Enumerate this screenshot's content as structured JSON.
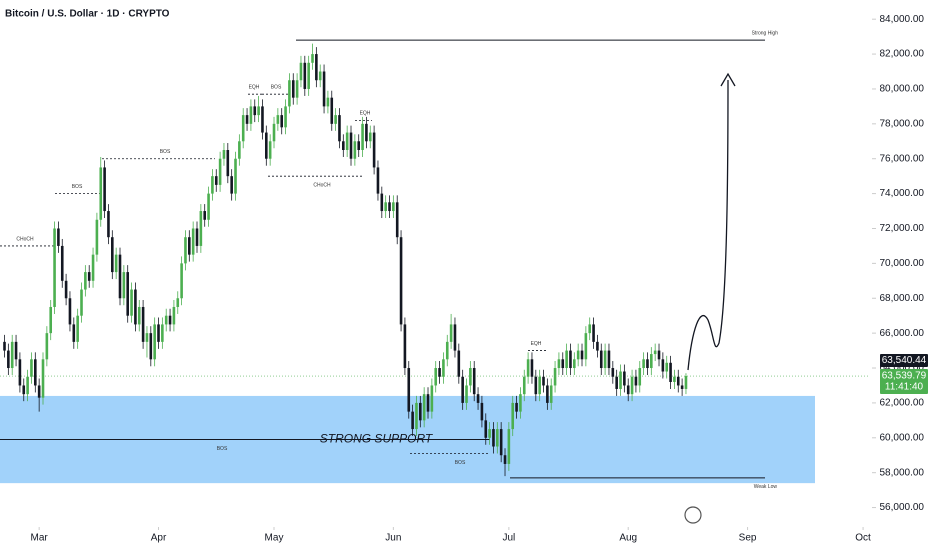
{
  "chart_data": {
    "type": "candlestick",
    "title": "Bitcoin / U.S. Dollar · 1D · CRYPTO",
    "up_color": "#4caf50",
    "down_color": "#131722",
    "xlim": [
      -1.17,
      224.8
    ],
    "xticks": [
      {
        "value": 9,
        "label": "Mar"
      },
      {
        "value": 40,
        "label": "Apr"
      },
      {
        "value": 70,
        "label": "May"
      },
      {
        "value": 101,
        "label": "Jun"
      },
      {
        "value": 131,
        "label": "Jul"
      },
      {
        "value": 162,
        "label": "Aug"
      },
      {
        "value": 193,
        "label": "Sep"
      },
      {
        "value": 223,
        "label": "Oct"
      }
    ],
    "ylim": [
      55000,
      85100
    ],
    "yticks": [
      {
        "value": 56000,
        "label": "56,000.00"
      },
      {
        "value": 58000,
        "label": "58,000.00"
      },
      {
        "value": 60000,
        "label": "60,000.00"
      },
      {
        "value": 62000,
        "label": "62,000.00"
      },
      {
        "value": 64000,
        "label": "64,000.00"
      },
      {
        "value": 66000,
        "label": "66,000.00"
      },
      {
        "value": 68000,
        "label": "68,000.00"
      },
      {
        "value": 70000,
        "label": "70,000.00"
      },
      {
        "value": 72000,
        "label": "72,000.00"
      },
      {
        "value": 74000,
        "label": "74,000.00"
      },
      {
        "value": 76000,
        "label": "76,000.00"
      },
      {
        "value": 78000,
        "label": "78,000.00"
      },
      {
        "value": 80000,
        "label": "80,000.00"
      },
      {
        "value": 82000,
        "label": "82,000.00"
      },
      {
        "value": 84000,
        "label": "84,000.00"
      }
    ],
    "candles": [
      [
        65500,
        65900,
        64600,
        65000
      ],
      [
        65000,
        65400,
        63600,
        64000
      ],
      [
        64000,
        65900,
        63600,
        65500
      ],
      [
        65500,
        65900,
        64100,
        64500
      ],
      [
        64500,
        64900,
        62600,
        63000
      ],
      [
        63000,
        63400,
        62100,
        62500
      ],
      [
        62500,
        63900,
        62100,
        63500
      ],
      [
        63500,
        64900,
        63100,
        64500
      ],
      [
        64500,
        64900,
        62600,
        63000
      ],
      [
        63000,
        63400,
        61500,
        62300
      ],
      [
        62300,
        64900,
        61900,
        64500
      ],
      [
        64500,
        66400,
        64100,
        66000
      ],
      [
        66000,
        67900,
        65600,
        67500
      ],
      [
        67500,
        72400,
        67100,
        72000
      ],
      [
        72000,
        72400,
        70600,
        71000
      ],
      [
        71000,
        71400,
        68600,
        69000
      ],
      [
        69000,
        69400,
        67600,
        68000
      ],
      [
        68000,
        68400,
        66100,
        66500
      ],
      [
        66500,
        66900,
        65100,
        65500
      ],
      [
        65500,
        67400,
        65100,
        67000
      ],
      [
        67000,
        68900,
        66600,
        68500
      ],
      [
        68500,
        69900,
        68100,
        69500
      ],
      [
        69500,
        69900,
        68600,
        69000
      ],
      [
        69000,
        70900,
        68600,
        70500
      ],
      [
        70500,
        72900,
        70100,
        72500
      ],
      [
        72500,
        76100,
        72100,
        75500
      ],
      [
        75500,
        75900,
        72600,
        73000
      ],
      [
        73000,
        73400,
        71100,
        71500
      ],
      [
        71500,
        71900,
        69100,
        69500
      ],
      [
        69500,
        70900,
        69100,
        70500
      ],
      [
        70500,
        70900,
        67600,
        68000
      ],
      [
        68000,
        69900,
        67600,
        69500
      ],
      [
        69500,
        69900,
        66600,
        67000
      ],
      [
        67000,
        68900,
        66600,
        68500
      ],
      [
        68500,
        68900,
        66100,
        66500
      ],
      [
        66500,
        67900,
        66100,
        67500
      ],
      [
        67500,
        67900,
        65100,
        65500
      ],
      [
        65500,
        66400,
        64600,
        66000
      ],
      [
        66000,
        66400,
        64100,
        64500
      ],
      [
        64500,
        66900,
        64100,
        66500
      ],
      [
        66500,
        66900,
        65100,
        65500
      ],
      [
        65500,
        66900,
        65100,
        66500
      ],
      [
        66500,
        67400,
        66100,
        67000
      ],
      [
        67000,
        67400,
        66100,
        66500
      ],
      [
        66500,
        67900,
        66100,
        67500
      ],
      [
        67500,
        68400,
        67100,
        68000
      ],
      [
        68000,
        70400,
        67600,
        70000
      ],
      [
        70000,
        71900,
        69600,
        71500
      ],
      [
        71500,
        71900,
        70100,
        70500
      ],
      [
        70500,
        72400,
        70100,
        72000
      ],
      [
        72000,
        72400,
        70600,
        71000
      ],
      [
        71000,
        73400,
        70600,
        73000
      ],
      [
        73000,
        73400,
        72100,
        72500
      ],
      [
        72500,
        74400,
        72100,
        74000
      ],
      [
        74000,
        75400,
        73600,
        75000
      ],
      [
        75000,
        75400,
        74100,
        74500
      ],
      [
        74500,
        76400,
        74100,
        76000
      ],
      [
        76000,
        76900,
        75600,
        76500
      ],
      [
        76500,
        76900,
        74600,
        75000
      ],
      [
        75000,
        75400,
        73600,
        74000
      ],
      [
        74000,
        76400,
        73600,
        76000
      ],
      [
        76000,
        77400,
        75600,
        77000
      ],
      [
        77000,
        78900,
        76600,
        78500
      ],
      [
        78500,
        78900,
        77600,
        78000
      ],
      [
        78000,
        79400,
        77600,
        79000
      ],
      [
        79000,
        79400,
        78100,
        78500
      ],
      [
        78500,
        79600,
        78100,
        79000
      ],
      [
        79000,
        79400,
        77100,
        77500
      ],
      [
        77500,
        77900,
        75600,
        76000
      ],
      [
        76000,
        77400,
        75600,
        77000
      ],
      [
        77000,
        78400,
        76600,
        78000
      ],
      [
        78000,
        78900,
        77600,
        78500
      ],
      [
        78500,
        78900,
        77400,
        77800
      ],
      [
        77800,
        79400,
        77400,
        79000
      ],
      [
        79000,
        80900,
        78600,
        80500
      ],
      [
        80500,
        80900,
        79100,
        79500
      ],
      [
        79500,
        80900,
        79100,
        80500
      ],
      [
        80500,
        81900,
        80100,
        81500
      ],
      [
        81500,
        81900,
        79600,
        80000
      ],
      [
        80000,
        81900,
        79600,
        81500
      ],
      [
        81500,
        82600,
        81100,
        82000
      ],
      [
        82000,
        82400,
        80100,
        80500
      ],
      [
        80500,
        81400,
        80100,
        81000
      ],
      [
        81000,
        81400,
        78600,
        79000
      ],
      [
        79000,
        79900,
        78600,
        79500
      ],
      [
        79500,
        79900,
        77600,
        78000
      ],
      [
        78000,
        78900,
        77600,
        78500
      ],
      [
        78500,
        78900,
        76600,
        77000
      ],
      [
        77000,
        77400,
        76100,
        76500
      ],
      [
        76500,
        77900,
        76100,
        77500
      ],
      [
        77500,
        77900,
        75600,
        76000
      ],
      [
        76000,
        77400,
        75600,
        77000
      ],
      [
        77000,
        77400,
        76100,
        76500
      ],
      [
        76500,
        78400,
        76100,
        78000
      ],
      [
        78000,
        78400,
        76600,
        77000
      ],
      [
        77000,
        77900,
        76600,
        77500
      ],
      [
        77500,
        77900,
        75100,
        75500
      ],
      [
        75500,
        75900,
        73600,
        74000
      ],
      [
        74000,
        74400,
        72600,
        73000
      ],
      [
        73000,
        73900,
        72600,
        73500
      ],
      [
        73500,
        73900,
        72600,
        73000
      ],
      [
        73000,
        73900,
        72600,
        73500
      ],
      [
        73500,
        73900,
        71100,
        71500
      ],
      [
        71500,
        71900,
        66100,
        66500
      ],
      [
        66500,
        66900,
        63600,
        64000
      ],
      [
        64000,
        64400,
        61100,
        61500
      ],
      [
        61500,
        61900,
        60100,
        60500
      ],
      [
        60500,
        62400,
        60100,
        62000
      ],
      [
        62000,
        62400,
        60600,
        61000
      ],
      [
        61000,
        62900,
        60600,
        62500
      ],
      [
        62500,
        62900,
        61100,
        61500
      ],
      [
        61500,
        63400,
        61100,
        63000
      ],
      [
        63000,
        64400,
        62600,
        64000
      ],
      [
        64000,
        64400,
        63100,
        63500
      ],
      [
        63500,
        64900,
        63100,
        64500
      ],
      [
        64500,
        65900,
        64100,
        65500
      ],
      [
        65500,
        67100,
        65100,
        66500
      ],
      [
        66500,
        66900,
        64600,
        65000
      ],
      [
        65000,
        65400,
        63100,
        63500
      ],
      [
        63500,
        63900,
        61600,
        62000
      ],
      [
        62000,
        63400,
        61600,
        63000
      ],
      [
        63000,
        64400,
        62600,
        64000
      ],
      [
        64000,
        64400,
        62100,
        62500
      ],
      [
        62500,
        62900,
        61600,
        62000
      ],
      [
        62000,
        62400,
        60600,
        61000
      ],
      [
        61000,
        61400,
        59600,
        60000
      ],
      [
        60000,
        60900,
        59600,
        60500
      ],
      [
        60500,
        60900,
        59100,
        59500
      ],
      [
        59500,
        60900,
        59100,
        60500
      ],
      [
        60500,
        60900,
        58600,
        59000
      ],
      [
        59000,
        59400,
        57800,
        58500
      ],
      [
        58500,
        60900,
        58100,
        60500
      ],
      [
        60500,
        62400,
        60100,
        62000
      ],
      [
        62000,
        62400,
        61100,
        61500
      ],
      [
        61500,
        62900,
        61100,
        62500
      ],
      [
        62500,
        63900,
        62100,
        63500
      ],
      [
        63500,
        64900,
        63100,
        64500
      ],
      [
        64500,
        64900,
        63100,
        63500
      ],
      [
        63500,
        63900,
        62100,
        62500
      ],
      [
        62500,
        63900,
        62100,
        63500
      ],
      [
        63500,
        63900,
        62600,
        63000
      ],
      [
        63000,
        63400,
        61600,
        62000
      ],
      [
        62000,
        63400,
        61600,
        63000
      ],
      [
        63000,
        64400,
        62600,
        64000
      ],
      [
        64000,
        64900,
        63600,
        64500
      ],
      [
        64500,
        64900,
        63600,
        64000
      ],
      [
        64000,
        65400,
        63600,
        65000
      ],
      [
        65000,
        65400,
        63600,
        64000
      ],
      [
        64000,
        64900,
        63600,
        64500
      ],
      [
        64500,
        65400,
        64100,
        65000
      ],
      [
        65000,
        65400,
        64100,
        64500
      ],
      [
        64500,
        66400,
        64100,
        66000
      ],
      [
        66000,
        66900,
        65600,
        66500
      ],
      [
        66500,
        66900,
        65100,
        65500
      ],
      [
        65500,
        65900,
        64600,
        65000
      ],
      [
        65000,
        65400,
        63600,
        64000
      ],
      [
        64000,
        65400,
        63600,
        65000
      ],
      [
        65000,
        65400,
        63600,
        64000
      ],
      [
        64000,
        64400,
        63100,
        63500
      ],
      [
        63500,
        63900,
        62400,
        62800
      ],
      [
        62800,
        64200,
        62400,
        63800
      ],
      [
        63800,
        64200,
        62600,
        63000
      ],
      [
        63000,
        63400,
        62100,
        62500
      ],
      [
        62500,
        63900,
        62100,
        63500
      ],
      [
        63500,
        63900,
        62600,
        63000
      ],
      [
        63000,
        64400,
        62600,
        64000
      ],
      [
        64000,
        64900,
        63600,
        64500
      ],
      [
        64500,
        64900,
        63600,
        64000
      ],
      [
        64000,
        65200,
        63600,
        64800
      ],
      [
        64800,
        65400,
        64400,
        65000
      ],
      [
        65000,
        65400,
        64100,
        64500
      ],
      [
        64500,
        64900,
        63400,
        63800
      ],
      [
        63800,
        64700,
        63400,
        64300
      ],
      [
        64300,
        64700,
        62800,
        63200
      ],
      [
        63200,
        63900,
        62800,
        63500
      ],
      [
        63500,
        63900,
        62600,
        63000
      ],
      [
        63000,
        63400,
        62400,
        62800
      ],
      [
        62800,
        63700,
        62500,
        63540
      ]
    ],
    "zone": {
      "label": "STRONG SUPPORT",
      "top": 62400,
      "bottom": 57400
    },
    "levels": [
      {
        "label": "CHoCH",
        "value": 71000,
        "style": "dashed"
      },
      {
        "label": "BOS",
        "value": 74000,
        "style": "dashed"
      },
      {
        "label": "BOS",
        "value": 76000,
        "style": "dashed"
      },
      {
        "label": "EQH",
        "value": 79700,
        "style": "dashed"
      },
      {
        "label": "BOS",
        "value": 79700,
        "style": "dashed"
      },
      {
        "label": "CHoCH",
        "value": 75000,
        "style": "dashed"
      },
      {
        "label": "EQH",
        "value": 78200,
        "style": "dashed"
      },
      {
        "label": "BOS",
        "value": 59900,
        "style": "solid"
      },
      {
        "label": "BOS",
        "value": 59100,
        "style": "dashed"
      },
      {
        "label": "EQH",
        "value": 65000,
        "style": "dashed"
      },
      {
        "label": "Strong High",
        "value": 82800,
        "style": "solid"
      },
      {
        "label": "Weak Low",
        "value": 57700,
        "style": "solid"
      }
    ],
    "last_price": {
      "label": "63,540.44"
    },
    "current_price": {
      "value": 63539.79,
      "label": "63,539.79",
      "countdown": "11:41:40"
    }
  }
}
